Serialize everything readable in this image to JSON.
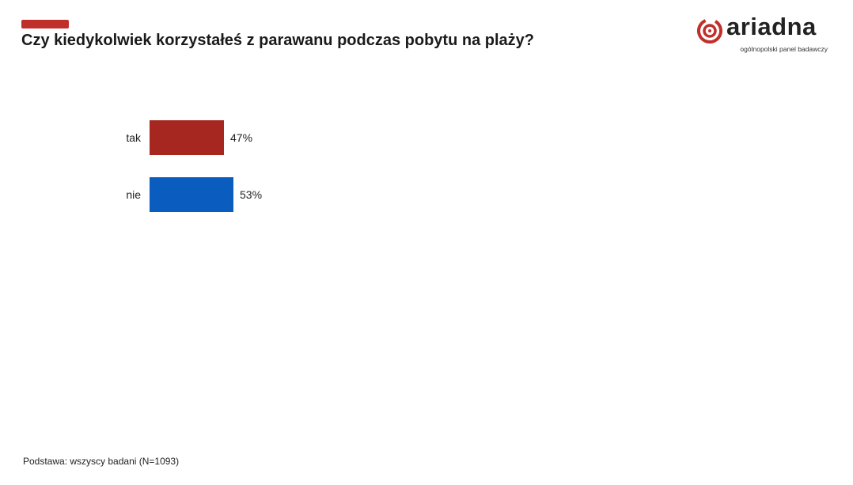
{
  "title": "Czy kiedykolwiek korzystałeś z parawanu podczas pobytu na plaży?",
  "logo": {
    "wordmark": "ariadna",
    "tagline": "ogólnopolski panel badawczy"
  },
  "footer": "Podstawa: wszyscy badani (N=1093)",
  "colors": {
    "accent": "#c0302b",
    "tak": "#a5271f",
    "nie": "#0b5cbf"
  },
  "chart_data": {
    "type": "bar",
    "orientation": "horizontal",
    "categories": [
      "tak",
      "nie"
    ],
    "values": [
      47,
      53
    ],
    "labels": [
      "47%",
      "53%"
    ],
    "unit": "%",
    "title": "Czy kiedykolwiek korzystałeś z parawanu podczas pobytu na plaży?",
    "grid": false,
    "legend": "none"
  }
}
